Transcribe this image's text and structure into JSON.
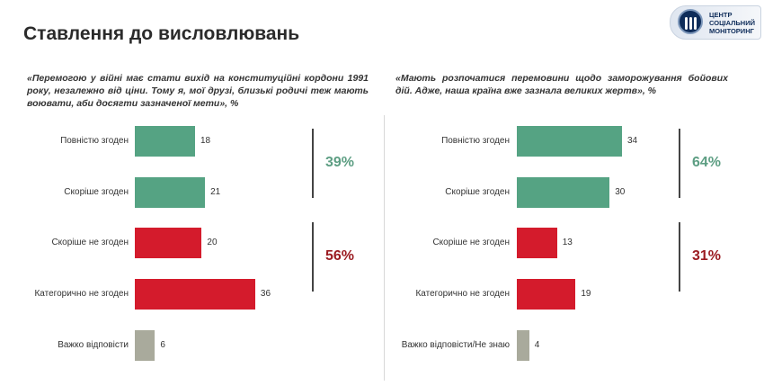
{
  "header": {
    "title": "Ставлення до висловлювань",
    "logo_text": [
      "ЦЕНТР",
      "СОЦІАЛЬНИЙ",
      "МОНІТОРИНГ"
    ]
  },
  "colors": {
    "agree": "#55a383",
    "disagree": "#d41b2c",
    "unsure": "#a9aa9c",
    "agree_total": "#5d9e83",
    "disagree_total": "#9b1c22"
  },
  "chart_data": [
    {
      "type": "bar",
      "orientation": "horizontal",
      "unit": "%",
      "title": "«Перемогою у війні має стати вихід на конституційні кордони 1991 року, незалежно від ціни. Тому я, мої друзі, близькі родичі теж мають воювати, аби досягти зазначеної мети», %",
      "categories": [
        "Повністю згоден",
        "Скоріше згоден",
        "Скоріше не згоден",
        "Категорично не згоден",
        "Важко відповісти"
      ],
      "values": [
        18,
        21,
        20,
        36,
        6
      ],
      "groups": [
        "agree",
        "agree",
        "disagree",
        "disagree",
        "unsure"
      ],
      "totals": [
        {
          "label": "39%",
          "group": "agree"
        },
        {
          "label": "56%",
          "group": "disagree"
        }
      ]
    },
    {
      "type": "bar",
      "orientation": "horizontal",
      "unit": "%",
      "title": "«Мають розпочатися перемовини щодо заморожування бойових дій. Адже, наша країна вже зазнала великих жертв», %",
      "categories": [
        "Повністю згоден",
        "Скоріше згоден",
        "Скоріше не згоден",
        "Категорично не згоден",
        "Важко відповісти/Не знаю"
      ],
      "values": [
        34,
        30,
        13,
        19,
        4
      ],
      "groups": [
        "agree",
        "agree",
        "disagree",
        "disagree",
        "unsure"
      ],
      "totals": [
        {
          "label": "64%",
          "group": "agree"
        },
        {
          "label": "31%",
          "group": "disagree"
        }
      ]
    }
  ]
}
